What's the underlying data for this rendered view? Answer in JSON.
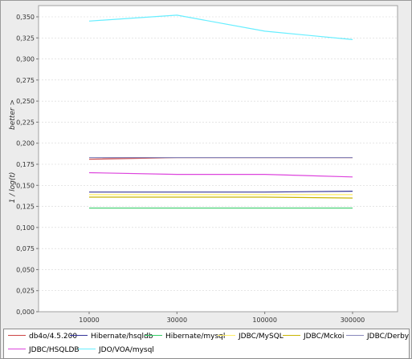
{
  "chart_data": {
    "type": "line",
    "title": "",
    "xlabel": "",
    "ylabel": "1 / log(t)",
    "ylabel_note": "better >",
    "categories": [
      "10000",
      "30000",
      "100000",
      "300000"
    ],
    "ylim": [
      0,
      0.36
    ],
    "ytick_step": 0.025,
    "yticks": [
      "0,000",
      "0,025",
      "0,050",
      "0,075",
      "0,100",
      "0,125",
      "0,150",
      "0,175",
      "0,200",
      "0,225",
      "0,250",
      "0,275",
      "0,300",
      "0,325",
      "0,350"
    ],
    "grid": true,
    "legend_position": "bottom",
    "series": [
      {
        "name": "db4o/4.5.200",
        "color": "#cc4444",
        "values": [
          0.181,
          0.183,
          0.183,
          0.183
        ]
      },
      {
        "name": "Hibernate/hsqldb",
        "color": "#333399",
        "values": [
          0.142,
          0.142,
          0.142,
          0.143
        ]
      },
      {
        "name": "Hibernate/mysql",
        "color": "#33cc66",
        "values": [
          0.123,
          0.123,
          0.123,
          0.123
        ]
      },
      {
        "name": "JDBC/MySQL",
        "color": "#ffee66",
        "values": [
          0.139,
          0.139,
          0.139,
          0.139
        ]
      },
      {
        "name": "JDBC/Mckoi",
        "color": "#c8b400",
        "values": [
          0.136,
          0.136,
          0.136,
          0.135
        ]
      },
      {
        "name": "JDBC/Derby",
        "color": "#8888bb",
        "values": [
          0.183,
          0.183,
          0.183,
          0.183
        ]
      },
      {
        "name": "JDBC/HSQLDB",
        "color": "#dd44dd",
        "values": [
          0.165,
          0.163,
          0.163,
          0.16
        ]
      },
      {
        "name": "JDO/VOA/mysql",
        "color": "#66eeff",
        "values": [
          0.345,
          0.352,
          0.333,
          0.323
        ]
      }
    ]
  }
}
